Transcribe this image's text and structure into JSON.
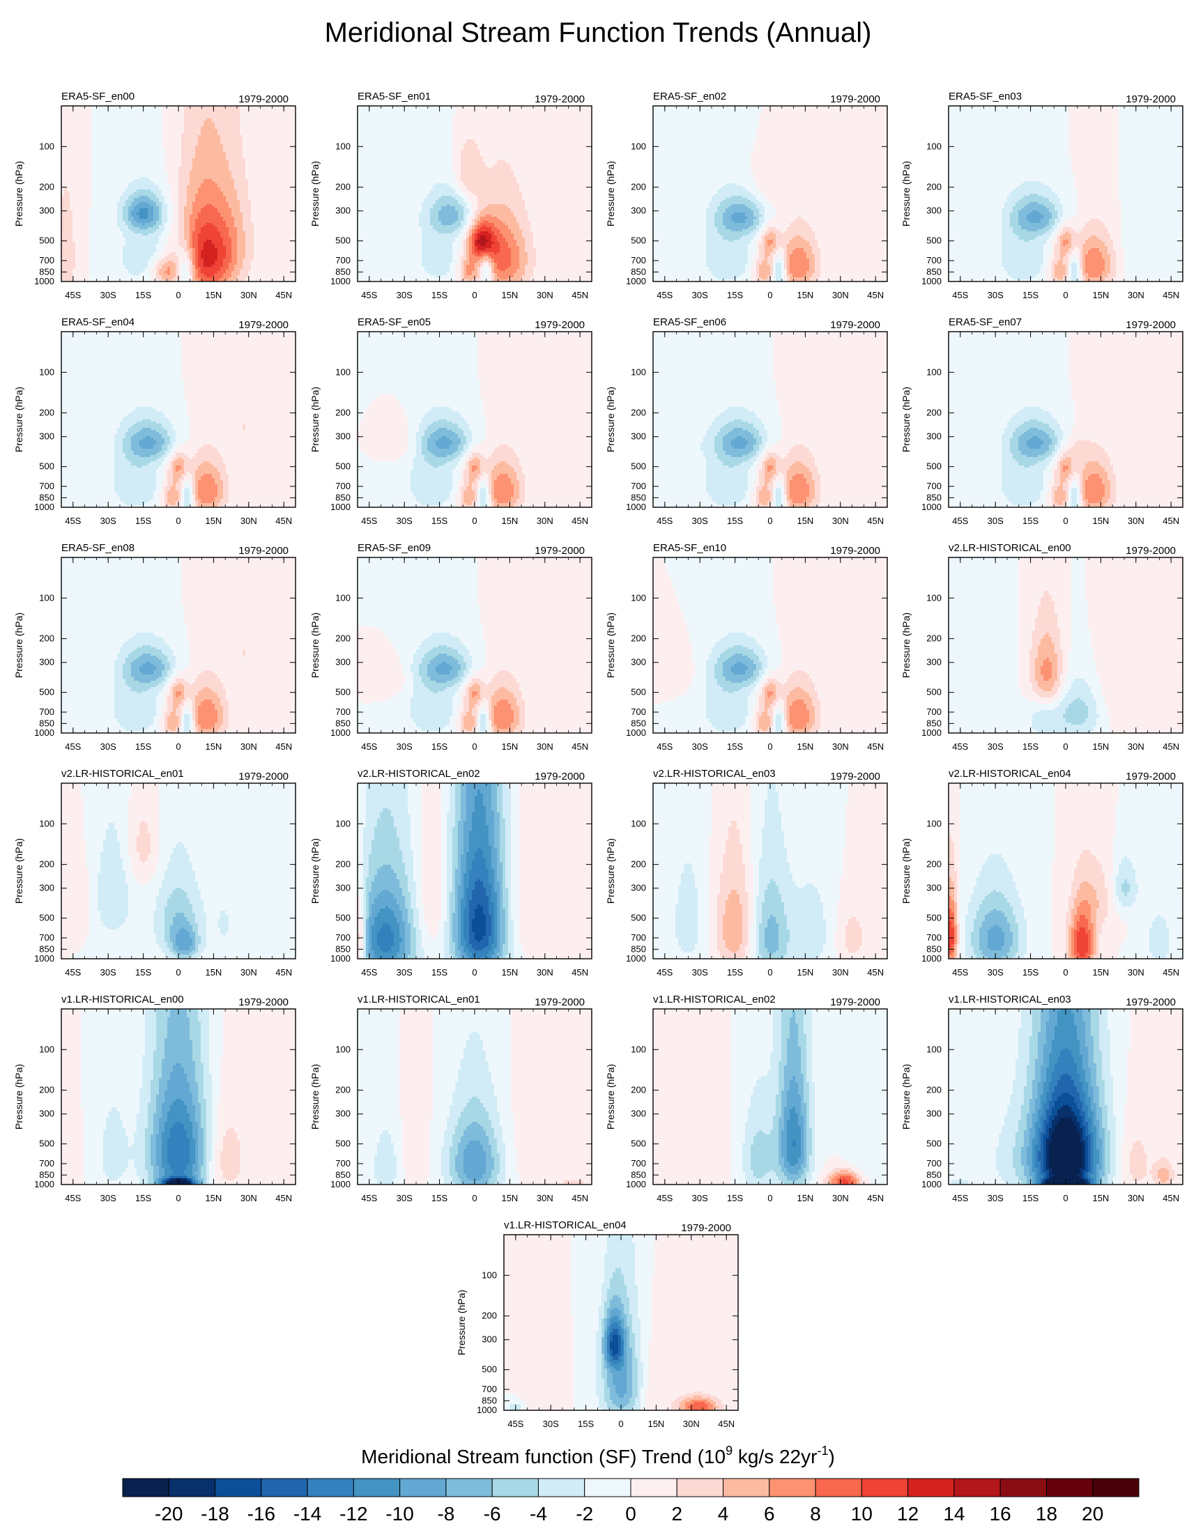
{
  "chart_data": {
    "type": "contour",
    "title": "Meridional Stream Function Trends (Annual)",
    "xlabel": "",
    "ylabel": "Pressure (hPa)",
    "x_ticks": [
      "45S",
      "30S",
      "15S",
      "0",
      "15N",
      "30N",
      "45N"
    ],
    "x_tick_values": [
      -45,
      -30,
      -15,
      0,
      15,
      30,
      45
    ],
    "xlim": [
      -50,
      50
    ],
    "y_ticks": [
      "100",
      "200",
      "300",
      "500",
      "700",
      "850",
      "1000"
    ],
    "y_tick_values": [
      100,
      200,
      300,
      500,
      700,
      850,
      1000
    ],
    "ylim": [
      1000,
      50
    ],
    "period": "1979-2000",
    "panels": [
      {
        "name": "ERA5-SF_en00",
        "features": [
          [
            -15,
            310,
            -9,
            6,
            70
          ],
          [
            -12,
            650,
            -4,
            10,
            280
          ],
          [
            -5,
            830,
            7,
            5,
            150
          ],
          [
            3,
            820,
            -9,
            3,
            200
          ],
          [
            12,
            650,
            13,
            9,
            380
          ],
          [
            -48,
            650,
            3,
            4,
            500
          ],
          [
            25,
            450,
            2,
            6,
            300
          ]
        ]
      },
      {
        "name": "ERA5-SF_en01",
        "features": [
          [
            -10,
            320,
            -6,
            7,
            80
          ],
          [
            -15,
            650,
            -3,
            9,
            300
          ],
          [
            3,
            500,
            12,
            4,
            120
          ],
          [
            12,
            680,
            9,
            8,
            320
          ],
          [
            -3,
            830,
            6,
            3,
            150
          ],
          [
            5,
            830,
            -7,
            2,
            180
          ],
          [
            -3,
            160,
            4,
            4,
            60
          ]
        ]
      },
      {
        "name": "ERA5-SF_en02",
        "features": [
          [
            -12,
            330,
            -7,
            8,
            80
          ],
          [
            -18,
            650,
            -4,
            8,
            280
          ],
          [
            0,
            500,
            6,
            3,
            100
          ],
          [
            12,
            750,
            8,
            6,
            250
          ],
          [
            -3,
            840,
            6,
            3,
            150
          ],
          [
            4,
            840,
            -7,
            2,
            200
          ],
          [
            0,
            200,
            2,
            8,
            60
          ]
        ]
      },
      {
        "name": "ERA5-SF_en03",
        "features": [
          [
            -12,
            330,
            -7,
            8,
            80
          ],
          [
            -18,
            650,
            -4,
            8,
            280
          ],
          [
            0,
            500,
            6,
            3,
            100
          ],
          [
            12,
            750,
            8,
            6,
            250
          ],
          [
            -3,
            840,
            6,
            3,
            150
          ],
          [
            4,
            840,
            -7,
            2,
            200
          ],
          [
            30,
            650,
            -2,
            4,
            300
          ]
        ]
      },
      {
        "name": "ERA5-SF_en04",
        "features": [
          [
            -12,
            330,
            -7,
            8,
            80
          ],
          [
            -18,
            650,
            -4,
            8,
            280
          ],
          [
            0,
            500,
            6,
            3,
            100
          ],
          [
            12,
            750,
            8,
            6,
            250
          ],
          [
            -3,
            840,
            6,
            3,
            150
          ],
          [
            4,
            840,
            -7,
            2,
            200
          ],
          [
            28,
            250,
            2,
            5,
            80
          ]
        ]
      },
      {
        "name": "ERA5-SF_en05",
        "features": [
          [
            -12,
            330,
            -7,
            8,
            80
          ],
          [
            -18,
            650,
            -4,
            8,
            280
          ],
          [
            0,
            500,
            6,
            3,
            100
          ],
          [
            12,
            750,
            8,
            6,
            250
          ],
          [
            -3,
            840,
            6,
            3,
            150
          ],
          [
            4,
            840,
            -7,
            2,
            200
          ],
          [
            -30,
            330,
            2,
            5,
            80
          ]
        ]
      },
      {
        "name": "ERA5-SF_en06",
        "features": [
          [
            -12,
            330,
            -7,
            8,
            80
          ],
          [
            -18,
            650,
            -4,
            8,
            280
          ],
          [
            0,
            500,
            6,
            3,
            100
          ],
          [
            12,
            750,
            8,
            6,
            250
          ],
          [
            -3,
            840,
            6,
            3,
            150
          ],
          [
            4,
            840,
            -7,
            2,
            200
          ],
          [
            -35,
            350,
            -1,
            5,
            80
          ]
        ]
      },
      {
        "name": "ERA5-SF_en07",
        "features": [
          [
            -12,
            330,
            -7,
            8,
            80
          ],
          [
            -18,
            650,
            -4,
            8,
            280
          ],
          [
            0,
            500,
            6,
            3,
            100
          ],
          [
            12,
            750,
            8,
            6,
            250
          ],
          [
            -3,
            840,
            6,
            3,
            150
          ],
          [
            4,
            840,
            -7,
            2,
            200
          ],
          [
            5,
            360,
            2,
            3,
            60
          ]
        ]
      },
      {
        "name": "ERA5-SF_en08",
        "features": [
          [
            -12,
            330,
            -7,
            8,
            80
          ],
          [
            -18,
            650,
            -4,
            8,
            280
          ],
          [
            0,
            500,
            6,
            3,
            100
          ],
          [
            12,
            750,
            8,
            6,
            250
          ],
          [
            -3,
            840,
            6,
            3,
            150
          ],
          [
            4,
            840,
            -7,
            2,
            200
          ],
          [
            28,
            250,
            2,
            5,
            80
          ]
        ]
      },
      {
        "name": "ERA5-SF_en09",
        "features": [
          [
            -12,
            330,
            -7,
            8,
            80
          ],
          [
            -18,
            650,
            -4,
            8,
            280
          ],
          [
            0,
            500,
            6,
            3,
            100
          ],
          [
            12,
            750,
            8,
            6,
            250
          ],
          [
            -3,
            840,
            6,
            3,
            150
          ],
          [
            4,
            840,
            -7,
            2,
            200
          ],
          [
            -35,
            400,
            2,
            5,
            80
          ]
        ]
      },
      {
        "name": "ERA5-SF_en10",
        "features": [
          [
            -12,
            330,
            -7,
            8,
            80
          ],
          [
            -18,
            650,
            -4,
            8,
            280
          ],
          [
            0,
            500,
            6,
            3,
            100
          ],
          [
            12,
            750,
            8,
            6,
            250
          ],
          [
            -3,
            840,
            6,
            3,
            150
          ],
          [
            4,
            840,
            -7,
            2,
            200
          ],
          [
            -40,
            350,
            2,
            5,
            80
          ]
        ]
      },
      {
        "name": "v2.LR-HISTORICAL_en00",
        "features": [
          [
            -8,
            380,
            8,
            5,
            180
          ],
          [
            5,
            700,
            -5,
            8,
            250
          ],
          [
            -30,
            600,
            -2,
            5,
            350
          ],
          [
            20,
            400,
            2,
            6,
            350
          ],
          [
            -10,
            750,
            -3,
            5,
            250
          ]
        ]
      },
      {
        "name": "v2.LR-HISTORICAL_en01",
        "features": [
          [
            -28,
            350,
            -4,
            6,
            220
          ],
          [
            0,
            550,
            -6,
            7,
            280
          ],
          [
            3,
            800,
            -6,
            4,
            150
          ],
          [
            -15,
            150,
            3,
            5,
            80
          ],
          [
            -42,
            400,
            2,
            4,
            150
          ],
          [
            20,
            550,
            -2,
            5,
            350
          ]
        ]
      },
      {
        "name": "v2.LR-HISTORICAL_en02",
        "features": [
          [
            -38,
            720,
            -13,
            9,
            420
          ],
          [
            2,
            570,
            -17,
            8,
            500
          ],
          [
            -18,
            400,
            3,
            5,
            300
          ],
          [
            20,
            450,
            2,
            6,
            350
          ],
          [
            -49,
            700,
            8,
            2,
            300
          ]
        ]
      },
      {
        "name": "v2.LR-HISTORICAL_en03",
        "features": [
          [
            -15,
            600,
            6,
            6,
            350
          ],
          [
            0,
            700,
            -7,
            6,
            420
          ],
          [
            18,
            650,
            -3,
            7,
            400
          ],
          [
            -35,
            550,
            -3,
            6,
            400
          ],
          [
            35,
            700,
            3,
            5,
            250
          ]
        ]
      },
      {
        "name": "v2.LR-HISTORICAL_en04",
        "features": [
          [
            -30,
            720,
            -9,
            8,
            320
          ],
          [
            7,
            780,
            12,
            4,
            300
          ],
          [
            -49,
            680,
            12,
            2,
            300
          ],
          [
            25,
            300,
            -5,
            4,
            100
          ],
          [
            15,
            350,
            3,
            6,
            150
          ],
          [
            40,
            750,
            -3,
            5,
            300
          ]
        ]
      },
      {
        "name": "v1.LR-HISTORICAL_en00",
        "features": [
          [
            0,
            580,
            -14,
            9,
            430
          ],
          [
            0,
            980,
            -18,
            5,
            60
          ],
          [
            -28,
            600,
            -3,
            5,
            350
          ],
          [
            20,
            650,
            4,
            6,
            320
          ],
          [
            -48,
            650,
            2,
            3,
            300
          ]
        ]
      },
      {
        "name": "v1.LR-HISTORICAL_en01",
        "features": [
          [
            0,
            700,
            -10,
            8,
            350
          ],
          [
            -38,
            750,
            -4,
            4,
            300
          ],
          [
            -25,
            550,
            2,
            4,
            300
          ],
          [
            42,
            970,
            3,
            5,
            50
          ],
          [
            20,
            500,
            1,
            6,
            350
          ]
        ]
      },
      {
        "name": "v1.LR-HISTORICAL_en02",
        "features": [
          [
            10,
            500,
            -12,
            5,
            380
          ],
          [
            -5,
            650,
            -5,
            5,
            350
          ],
          [
            32,
            950,
            11,
            5,
            120
          ],
          [
            -25,
            650,
            2,
            5,
            300
          ],
          [
            40,
            650,
            -2,
            5,
            300
          ]
        ]
      },
      {
        "name": "v1.LR-HISTORICAL_en03",
        "features": [
          [
            0,
            620,
            -26,
            10,
            420
          ],
          [
            0,
            980,
            -20,
            6,
            50
          ],
          [
            -25,
            650,
            -2,
            8,
            350
          ],
          [
            42,
            850,
            5,
            3,
            150
          ],
          [
            30,
            700,
            3,
            5,
            300
          ],
          [
            -45,
            970,
            -3,
            4,
            60
          ]
        ]
      },
      {
        "name": "v1.LR-HISTORICAL_en04",
        "features": [
          [
            0,
            620,
            -9,
            6,
            380
          ],
          [
            -3,
            320,
            -12,
            3,
            100
          ],
          [
            33,
            950,
            10,
            6,
            120
          ],
          [
            -35,
            650,
            2,
            5,
            300
          ],
          [
            15,
            700,
            2,
            5,
            300
          ],
          [
            -45,
            950,
            -3,
            3,
            80
          ]
        ]
      }
    ],
    "colorbar": {
      "title": "Meridional Stream function (SF) Trend (10",
      "title_sup": "9",
      "title_mid": " kg/s 22yr",
      "title_sup2": "-1",
      "title_end": ")",
      "labels": [
        "-20",
        "-18",
        "-16",
        "-14",
        "-12",
        "-10",
        "-8",
        "-6",
        "-4",
        "-2",
        "0",
        "2",
        "4",
        "6",
        "8",
        "10",
        "12",
        "14",
        "16",
        "18",
        "20"
      ],
      "colors": [
        "#08214e",
        "#08306b",
        "#0c4f99",
        "#2166ac",
        "#3581be",
        "#4393c3",
        "#62a8d3",
        "#7fbcdb",
        "#a8d8e6",
        "#d1ecf7",
        "#eef8fc",
        "#fdeff0",
        "#fdd9d4",
        "#fcbba1",
        "#fc9272",
        "#f7684e",
        "#ef4336",
        "#d52221",
        "#b3161b",
        "#8b0d14",
        "#67000d",
        "#4a0008"
      ]
    }
  }
}
